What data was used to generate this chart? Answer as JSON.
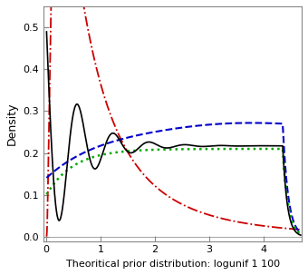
{
  "xlabel": "Theoritical prior distribution: logunif 1 100",
  "ylabel": "Density",
  "xlim": [
    -0.05,
    4.7
  ],
  "ylim": [
    -0.01,
    0.55
  ],
  "yticks": [
    0.0,
    0.1,
    0.2,
    0.3,
    0.4,
    0.5
  ],
  "xticks": [
    0,
    1,
    2,
    3,
    4
  ],
  "bg_color": "#ffffff",
  "hline_color": "#aaaaaa",
  "black_color": "#000000",
  "red_color": "#cc0000",
  "blue_color": "#0000cc",
  "green_color": "#00aa00"
}
